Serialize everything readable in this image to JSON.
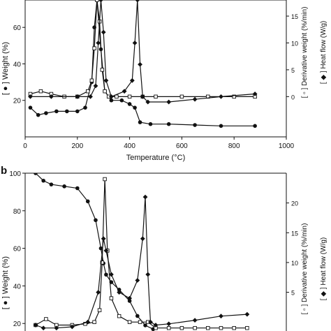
{
  "panels": [
    {
      "label": "",
      "left_axis_label": "[ ● ] Weight (%)",
      "right_axis_label_1": "[ ▫ ] Derivative weight (%/min)",
      "right_axis_label_2": "[ ◆ ] Heat flow (W/g)"
    },
    {
      "label": "b",
      "left_axis_label": "[ ● ] Weight (%)",
      "right_axis_label_1": "[ ▫ ] Derivative weight (%/min)",
      "right_axis_label_2": "[ ◆ ] Heat flow (W/g)"
    }
  ],
  "chart_data": [
    {
      "type": "line",
      "panel": "a",
      "xlabel": "Temperature (°C)",
      "x_ticks": [
        0,
        200,
        400,
        600,
        800,
        1000
      ],
      "xlim": [
        0,
        1000
      ],
      "ylim_left": [
        0,
        75
      ],
      "y_ticks_left": [
        20,
        40,
        60
      ],
      "ylim_right": [
        -7.5,
        18
      ],
      "y_ticks_right": [
        0,
        5,
        10,
        15
      ],
      "grid": false,
      "series": [
        {
          "marker": "circle",
          "axis": "left",
          "x": [
            20,
            50,
            80,
            120,
            160,
            200,
            230,
            255,
            265,
            275,
            290,
            305,
            330,
            370,
            400,
            420,
            440,
            480,
            550,
            650,
            750,
            880
          ],
          "y": [
            16,
            12,
            13,
            14,
            14,
            14,
            16,
            30,
            60,
            75,
            48,
            25,
            20,
            20,
            18,
            16,
            8,
            7,
            7,
            6.5,
            6,
            6
          ]
        },
        {
          "marker": "square",
          "axis": "right",
          "x": [
            20,
            60,
            100,
            150,
            200,
            240,
            255,
            265,
            275,
            285,
            295,
            305,
            320,
            350,
            400,
            450,
            500,
            600,
            700,
            800,
            880
          ],
          "y": [
            0.5,
            1,
            0.5,
            0,
            0,
            1,
            3,
            9,
            18,
            14,
            5,
            1,
            0,
            0,
            0,
            0,
            0,
            0,
            0,
            0,
            0
          ]
        },
        {
          "marker": "diamond",
          "axis": "right",
          "x": [
            20,
            100,
            200,
            250,
            270,
            280,
            290,
            300,
            310,
            330,
            380,
            410,
            420,
            430,
            440,
            450,
            470,
            550,
            650,
            750,
            880
          ],
          "y": [
            0,
            0,
            0,
            0,
            2,
            10,
            18,
            12,
            3,
            0,
            1,
            3,
            10,
            18,
            6,
            0,
            -1,
            -1,
            -0.5,
            0,
            0.5
          ]
        }
      ]
    },
    {
      "type": "line",
      "panel": "b",
      "xlabel": "",
      "xlim": [
        0,
        1000
      ],
      "ylim_left": [
        16,
        100
      ],
      "y_ticks_left": [
        20,
        40,
        60,
        80,
        100
      ],
      "ylim_right": [
        -1.5,
        25
      ],
      "y_ticks_right": [
        5,
        10,
        15,
        20
      ],
      "grid": false,
      "series": [
        {
          "marker": "circle",
          "axis": "left",
          "x": [
            40,
            70,
            100,
            150,
            200,
            240,
            270,
            290,
            300,
            310,
            330,
            360,
            400,
            430,
            460,
            490
          ],
          "y": [
            100,
            96,
            94,
            93,
            92,
            85,
            75,
            60,
            52,
            46,
            42,
            38,
            32,
            24,
            19,
            17
          ]
        },
        {
          "marker": "square",
          "axis": "right",
          "x": [
            40,
            80,
            120,
            180,
            230,
            265,
            285,
            295,
            305,
            315,
            330,
            360,
            400,
            440,
            470,
            500,
            550,
            600,
            650,
            700,
            750,
            800,
            850
          ],
          "y": [
            -0.5,
            0.5,
            -0.5,
            -0.5,
            -0.3,
            0,
            2,
            10,
            24,
            12,
            4,
            1,
            0,
            0,
            0,
            -1,
            -1,
            -1,
            -1,
            -1,
            -1,
            -1,
            -1
          ]
        },
        {
          "marker": "diamond",
          "axis": "right",
          "x": [
            40,
            70,
            120,
            180,
            240,
            280,
            300,
            310,
            330,
            360,
            400,
            430,
            450,
            460,
            470,
            480,
            500,
            550,
            650,
            750,
            850
          ],
          "y": [
            -0.5,
            -1,
            -1,
            -0.8,
            0,
            5,
            14,
            12,
            8,
            5,
            4,
            7,
            14,
            21,
            8,
            0,
            -0.5,
            -0.3,
            0.3,
            1,
            1.3
          ]
        }
      ]
    }
  ]
}
